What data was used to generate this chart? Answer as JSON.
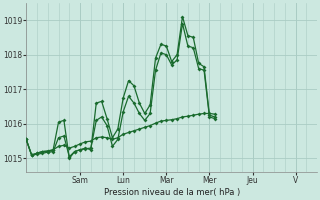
{
  "xlabel": "Pression niveau de la mer( hPa )",
  "background_color": "#cce8e0",
  "grid_color": "#aaccc4",
  "line_color": "#1a6b2e",
  "ylim": [
    1014.6,
    1019.5
  ],
  "yticks": [
    1015,
    1016,
    1017,
    1018,
    1019
  ],
  "xlim": [
    0,
    54
  ],
  "day_labels": [
    "Sam",
    "Lun",
    "Mar",
    "Mer",
    "Jeu",
    "V"
  ],
  "day_positions": [
    10,
    18,
    26,
    34,
    42,
    50
  ],
  "series1": [
    1015.55,
    1015.1,
    1015.15,
    1015.2,
    1015.2,
    1015.25,
    1016.05,
    1016.1,
    1015.0,
    1015.2,
    1015.25,
    1015.3,
    1015.25,
    1016.6,
    1016.65,
    1016.15,
    1015.6,
    1015.85,
    1016.75,
    1017.25,
    1017.1,
    1016.6,
    1016.3,
    1016.55,
    1017.9,
    1018.3,
    1018.25,
    1017.8,
    1018.0,
    1019.1,
    1018.55,
    1018.5,
    1017.75,
    1017.65,
    1016.25,
    1016.2
  ],
  "series2": [
    1015.55,
    1015.1,
    1015.15,
    1015.2,
    1015.22,
    1015.25,
    1015.35,
    1015.38,
    1015.3,
    1015.35,
    1015.42,
    1015.48,
    1015.5,
    1015.6,
    1015.62,
    1015.6,
    1015.55,
    1015.6,
    1015.7,
    1015.75,
    1015.8,
    1015.85,
    1015.9,
    1015.95,
    1016.02,
    1016.08,
    1016.1,
    1016.12,
    1016.15,
    1016.2,
    1016.22,
    1016.25,
    1016.28,
    1016.3,
    1016.3,
    1016.28
  ],
  "series3": [
    1015.55,
    1015.1,
    1015.12,
    1015.15,
    1015.18,
    1015.2,
    1015.6,
    1015.65,
    1015.05,
    1015.2,
    1015.25,
    1015.28,
    1015.3,
    1016.1,
    1016.2,
    1015.95,
    1015.35,
    1015.55,
    1016.35,
    1016.8,
    1016.6,
    1016.3,
    1016.1,
    1016.3,
    1017.55,
    1018.05,
    1018.0,
    1017.7,
    1017.85,
    1018.9,
    1018.25,
    1018.2,
    1017.6,
    1017.55,
    1016.2,
    1016.15
  ]
}
